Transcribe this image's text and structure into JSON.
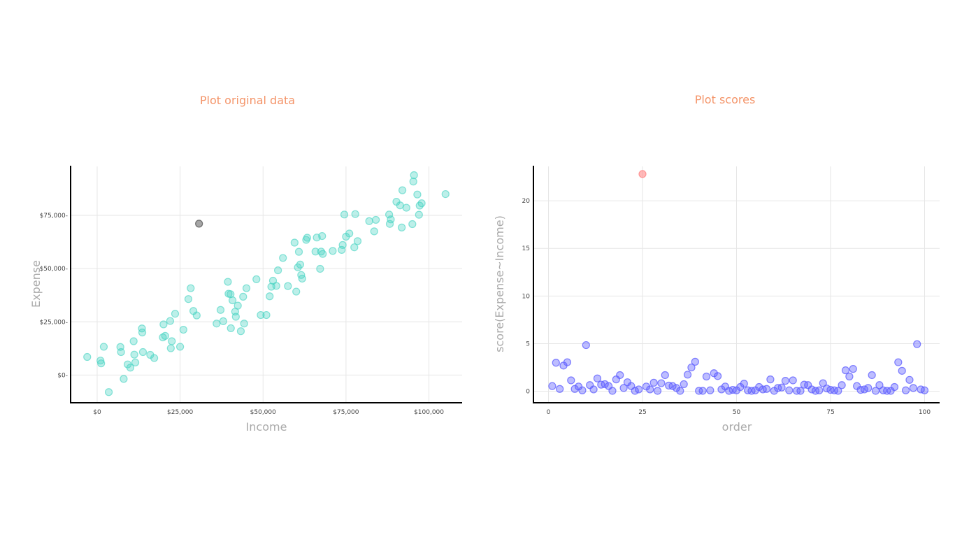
{
  "colors": {
    "title": "#f4956a",
    "axis_label": "#aaaaaa",
    "scatter_normal": "#3fd2c0",
    "scatter_outlier": "#777777",
    "score_normal": "#5b5bff",
    "score_outlier": "#ff7f7f"
  },
  "chart_data": [
    {
      "type": "scatter",
      "title": "Plot original data",
      "xlabel": "Income",
      "ylabel": "Expense",
      "xlim": [
        -8000,
        110000
      ],
      "ylim": [
        -13000,
        98000
      ],
      "x_ticks": [
        0,
        25000,
        50000,
        75000,
        100000
      ],
      "x_tick_labels": [
        "$0",
        "$25,000",
        "$50,000",
        "$75,000",
        "$100,000"
      ],
      "y_ticks": [
        0,
        25000,
        50000,
        75000
      ],
      "y_tick_labels": [
        "$0-",
        "$25,000-",
        "$50,000-",
        "$75,000-"
      ],
      "grid": true,
      "series": [
        {
          "points": [
            [
              -3000,
              8500
            ],
            [
              1000,
              6800
            ],
            [
              1200,
              5500
            ],
            [
              2000,
              13300
            ],
            [
              3500,
              -8000
            ],
            [
              7000,
              13200
            ],
            [
              7200,
              10800
            ],
            [
              8000,
              -1800
            ],
            [
              9200,
              5000
            ],
            [
              10000,
              3500
            ],
            [
              11000,
              15900
            ],
            [
              11200,
              9600
            ],
            [
              11500,
              5900
            ],
            [
              13500,
              21900
            ],
            [
              13600,
              20000
            ],
            [
              13800,
              10800
            ],
            [
              16000,
              9500
            ],
            [
              17200,
              8000
            ],
            [
              19800,
              17700
            ],
            [
              20000,
              23800
            ],
            [
              20500,
              18400
            ],
            [
              22000,
              25400
            ],
            [
              22200,
              12600
            ],
            [
              22500,
              15900
            ],
            [
              23500,
              28800
            ],
            [
              25000,
              13300
            ],
            [
              26000,
              21300
            ],
            [
              27500,
              35700
            ],
            [
              28200,
              40800
            ],
            [
              29000,
              30100
            ],
            [
              30000,
              28000
            ],
            [
              36000,
              24200
            ],
            [
              37200,
              30600
            ],
            [
              38000,
              25300
            ],
            [
              39400,
              43800
            ],
            [
              39600,
              38200
            ],
            [
              40200,
              38000
            ],
            [
              40800,
              35100
            ],
            [
              41600,
              29800
            ],
            [
              41800,
              27400
            ],
            [
              40300,
              22000
            ],
            [
              42400,
              32600
            ],
            [
              43300,
              20600
            ],
            [
              44000,
              36800
            ],
            [
              44300,
              24200
            ],
            [
              45000,
              40800
            ],
            [
              48000,
              45000
            ],
            [
              49300,
              28200
            ],
            [
              51000,
              28200
            ],
            [
              52000,
              37000
            ],
            [
              52500,
              41500
            ],
            [
              53000,
              44300
            ],
            [
              54000,
              41900
            ],
            [
              54500,
              49200
            ],
            [
              56000,
              55000
            ],
            [
              57500,
              41800
            ],
            [
              59500,
              62200
            ],
            [
              60000,
              39200
            ],
            [
              60500,
              50600
            ],
            [
              60800,
              57900
            ],
            [
              61200,
              51900
            ],
            [
              61500,
              47000
            ],
            [
              61800,
              45300
            ],
            [
              63000,
              63500
            ],
            [
              63300,
              64500
            ],
            [
              65800,
              58000
            ],
            [
              66200,
              64600
            ],
            [
              67200,
              49900
            ],
            [
              67500,
              58000
            ],
            [
              67800,
              65300
            ],
            [
              68000,
              56900
            ],
            [
              71000,
              58300
            ],
            [
              73700,
              58800
            ],
            [
              74000,
              61100
            ],
            [
              74500,
              75400
            ],
            [
              75000,
              65000
            ],
            [
              76000,
              66500
            ],
            [
              77500,
              60000
            ],
            [
              77800,
              75600
            ],
            [
              78500,
              62900
            ],
            [
              82000,
              72300
            ],
            [
              83500,
              67500
            ],
            [
              84000,
              72900
            ],
            [
              88000,
              75400
            ],
            [
              88200,
              71000
            ],
            [
              88500,
              73100
            ],
            [
              90200,
              81400
            ],
            [
              91300,
              79700
            ],
            [
              91800,
              69300
            ],
            [
              92000,
              86800
            ],
            [
              93200,
              78600
            ],
            [
              95000,
              70900
            ],
            [
              95300,
              90900
            ],
            [
              95500,
              93900
            ],
            [
              96500,
              84800
            ],
            [
              97000,
              75300
            ],
            [
              97200,
              79600
            ],
            [
              97800,
              80700
            ],
            [
              105000,
              85000
            ]
          ]
        },
        {
          "points": [
            [
              30700,
              71100
            ]
          ]
        }
      ]
    },
    {
      "type": "scatter",
      "title": "Plot scores",
      "xlabel": "order",
      "ylabel": "score(Expense~Income)",
      "xlim": [
        -4,
        104
      ],
      "ylim": [
        -1.2,
        23.6
      ],
      "x_ticks": [
        0,
        25,
        50,
        75,
        100
      ],
      "x_tick_labels": [
        "0",
        "25",
        "50",
        "75",
        "100"
      ],
      "y_ticks": [
        0,
        5,
        10,
        15,
        20
      ],
      "y_tick_labels": [
        "0",
        "5",
        "10",
        "15",
        "20"
      ],
      "grid": true,
      "series": [
        {
          "values": [
            0.55,
            3.0,
            0.25,
            2.7,
            3.05,
            1.15,
            0.25,
            0.5,
            0.1,
            4.85,
            0.65,
            0.2,
            1.35,
            0.7,
            0.75,
            0.55,
            0.05,
            1.25,
            1.7,
            0.35,
            0.95,
            0.55,
            0.05,
            0.2,
            22.8,
            0.5,
            0.2,
            0.9,
            0.05,
            0.85,
            1.7,
            0.6,
            0.55,
            0.35,
            0.05,
            0.75,
            1.75,
            2.5,
            3.1,
            0.05,
            0.05,
            1.55,
            0.1,
            1.9,
            1.6,
            0.2,
            0.5,
            0.05,
            0.15,
            0.1,
            0.45,
            0.8,
            0.1,
            0.05,
            0.1,
            0.45,
            0.2,
            0.25,
            1.25,
            0.05,
            0.35,
            0.4,
            1.1,
            0.1,
            1.15,
            0.05,
            0.05,
            0.7,
            0.65,
            0.2,
            0.05,
            0.1,
            0.85,
            0.3,
            0.15,
            0.1,
            0.05,
            0.65,
            2.2,
            1.55,
            2.35,
            0.55,
            0.15,
            0.2,
            0.35,
            1.7,
            0.05,
            0.65,
            0.1,
            0.05,
            0.05,
            0.45,
            3.05,
            2.15,
            0.1,
            1.2,
            0.35,
            4.95,
            0.2,
            0.1
          ]
        }
      ],
      "outlier_index": 24
    }
  ]
}
